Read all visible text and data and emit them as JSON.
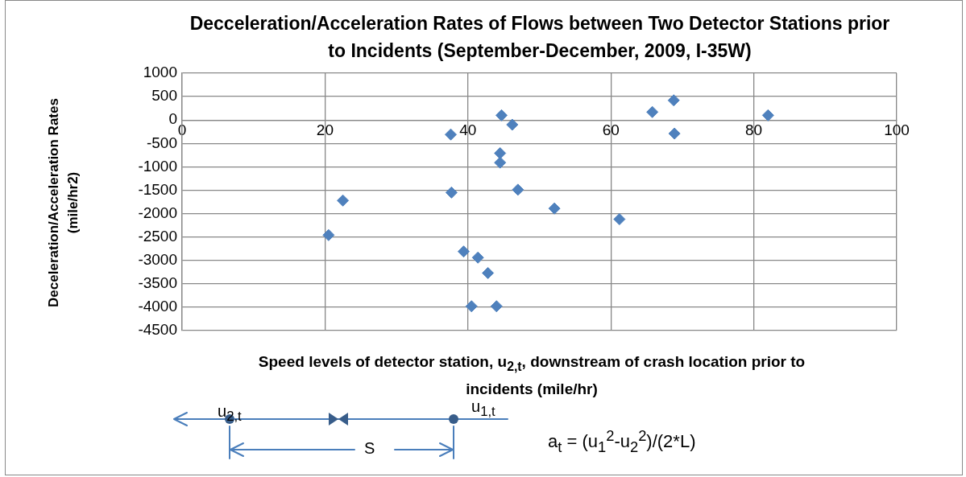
{
  "chart_data": {
    "type": "scatter",
    "title": "Decceleration/Acceleration Rates of Flows between Two Detector Stations prior to Incidents (September-December, 2009, I-35W)",
    "xlabel": "Speed levels of detector station, u$_{2,t}$, downstream of crash location prior to incidents (mile/hr)",
    "ylabel": "Deceleration/Acceleration Rates (mile/hr2)",
    "x": [
      22.5,
      20.5,
      37.6,
      37.7,
      44.7,
      46.2,
      44.5,
      44.5,
      47.0,
      52.1,
      39.4,
      41.4,
      42.8,
      40.5,
      44.0,
      61.2,
      65.8,
      68.8,
      68.9,
      82.0
    ],
    "series": [
      {
        "color": "#4f81bd",
        "values": [
          -1720,
          -2460,
          -310,
          -1550,
          100,
          -100,
          -710,
          -910,
          -1490,
          -1890,
          -2810,
          -2940,
          -3270,
          -3980,
          -3980,
          -2120,
          170,
          420,
          -290,
          100
        ]
      }
    ],
    "xlim": [
      0,
      100
    ],
    "xticks": [
      0,
      20,
      40,
      60,
      80,
      100
    ],
    "ylim": [
      -4500,
      1000
    ],
    "yticks": [
      -4500,
      -4000,
      -3500,
      -3000,
      -2500,
      -2000,
      -1500,
      -1000,
      -500,
      0,
      500,
      1000
    ],
    "grid": true,
    "marker": "diamond",
    "legend": false,
    "annotations": [
      "u$_{2,t}$",
      "u$_{1,t}$",
      "S",
      "a$_{t}$ = (u$_{1}$$^{2}$-u$_{2}$$^{2}$)/(2*L)"
    ]
  }
}
